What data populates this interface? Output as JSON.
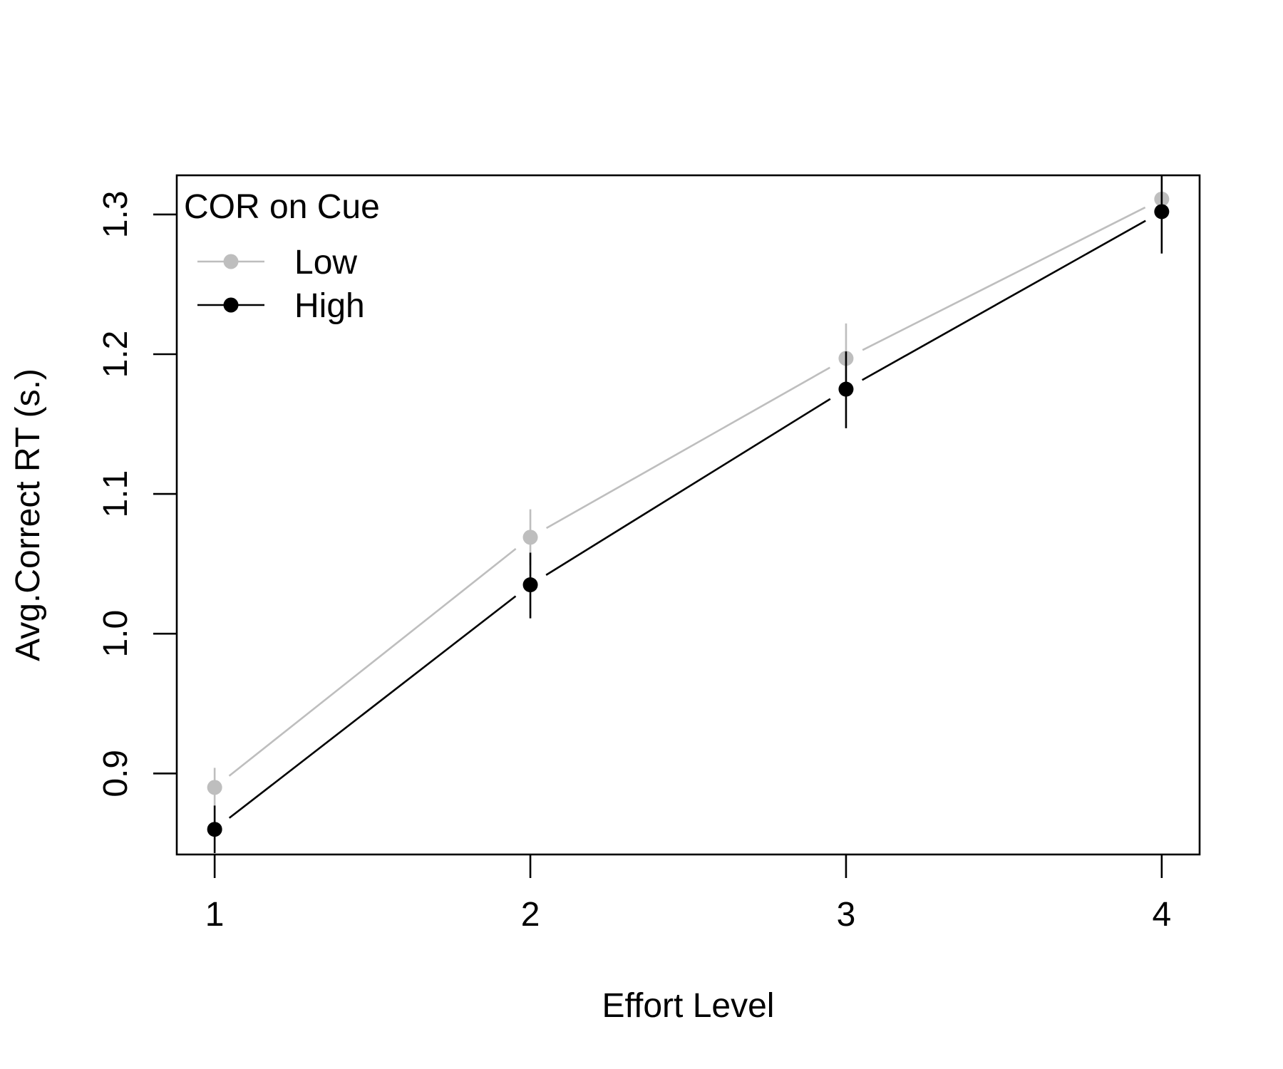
{
  "chart_data": {
    "type": "line",
    "xlabel": "Effort Level",
    "ylabel": "Avg.Correct RT (s.)",
    "x": [
      1,
      2,
      3,
      4
    ],
    "x_tick_labels": [
      "1",
      "2",
      "3",
      "4"
    ],
    "y_ticks": [
      0.9,
      1.0,
      1.1,
      1.2,
      1.3
    ],
    "y_tick_labels": [
      "0.9",
      "1.0",
      "1.1",
      "1.2",
      "1.3"
    ],
    "xlim": [
      0.88,
      4.12
    ],
    "ylim": [
      0.842,
      1.328
    ],
    "legend": {
      "title": "COR on Cue",
      "placement": "top-left"
    },
    "series": [
      {
        "name": "Low",
        "color": "#bebebe",
        "values": [
          0.89,
          1.069,
          1.197,
          1.311
        ],
        "err_low": [
          0.876,
          1.049,
          1.173,
          1.296
        ],
        "err_high": [
          0.904,
          1.089,
          1.222,
          1.326
        ]
      },
      {
        "name": "High",
        "color": "#000000",
        "values": [
          0.86,
          1.035,
          1.175,
          1.302
        ],
        "err_low": [
          0.843,
          1.011,
          1.147,
          1.272
        ],
        "err_high": [
          0.877,
          1.058,
          1.202,
          1.33
        ]
      }
    ]
  }
}
